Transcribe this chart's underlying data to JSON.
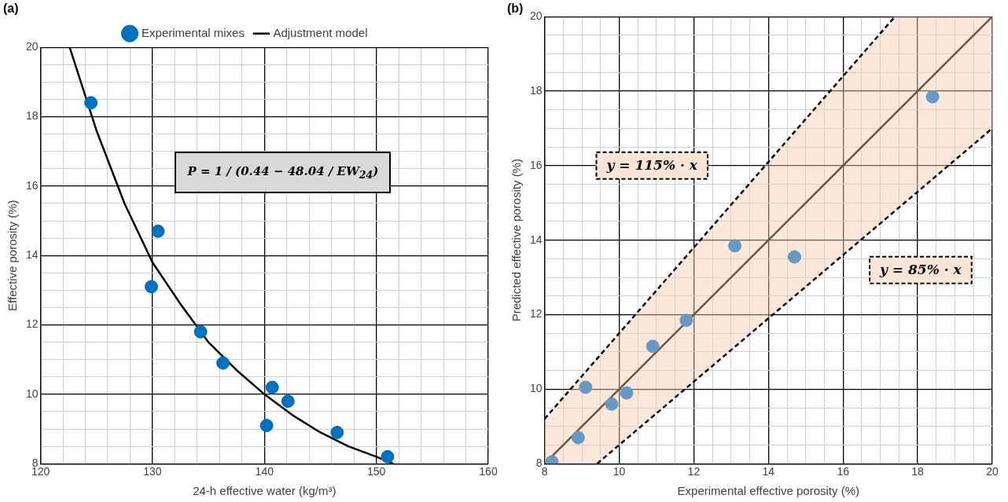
{
  "chart_data": [
    {
      "type": "scatter",
      "title": "(a)",
      "xlabel": "24-h effective water (kg/m³)",
      "ylabel": "Effective porosity (%)",
      "legend": "top",
      "grid": true,
      "marker": "circle",
      "xlim": [
        120,
        160
      ],
      "ylim": [
        8,
        20
      ],
      "xticks": [
        120,
        {
          "value": 122,
          "label": null
        },
        {
          "value": 124,
          "label": null
        },
        {
          "value": 126,
          "label": null
        },
        {
          "value": 128,
          "label": null
        },
        130,
        {
          "value": 132,
          "label": null
        },
        {
          "value": 134,
          "label": null
        },
        {
          "value": 136,
          "label": null
        },
        {
          "value": 138,
          "label": null
        },
        140,
        {
          "value": 142,
          "label": null
        },
        {
          "value": 144,
          "label": null
        },
        {
          "value": 146,
          "label": null
        },
        {
          "value": 148,
          "label": null
        },
        150,
        {
          "value": 152,
          "label": null
        },
        {
          "value": 154,
          "label": null
        },
        {
          "value": 156,
          "label": null
        },
        {
          "value": 158,
          "label": null
        },
        160
      ],
      "yticks": [
        8,
        {
          "value": 8.5,
          "label": null
        },
        {
          "value": 9,
          "label": null
        },
        {
          "value": 9.5,
          "label": null
        },
        10,
        {
          "value": 10.5,
          "label": null
        },
        {
          "value": 11,
          "label": null
        },
        {
          "value": 11.5,
          "label": null
        },
        12,
        {
          "value": 12.5,
          "label": null
        },
        {
          "value": 13,
          "label": null
        },
        {
          "value": 13.5,
          "label": null
        },
        14,
        {
          "value": 14.5,
          "label": null
        },
        {
          "value": 15,
          "label": null
        },
        {
          "value": 15.5,
          "label": null
        },
        16,
        {
          "value": 16.5,
          "label": null
        },
        {
          "value": 17,
          "label": null
        },
        {
          "value": 17.5,
          "label": null
        },
        18,
        {
          "value": 18.5,
          "label": null
        },
        {
          "value": 19,
          "label": null
        },
        {
          "value": 19.5,
          "label": null
        },
        20
      ],
      "annotations": [
        "P = 1 / (0.44 − 48.04 / EW$_{24}$)"
      ],
      "series": [
        {
          "name": "Experimental mixes",
          "type": "scatter",
          "color": "#0070c0",
          "x": [
            124.5,
            130.5,
            129.9,
            134.3,
            136.3,
            140.7,
            142.1,
            140.2,
            146.5,
            151
          ],
          "values": [
            18.4,
            14.7,
            13.1,
            11.8,
            10.9,
            10.2,
            9.8,
            9.1,
            8.9,
            8.2
          ]
        },
        {
          "name": "Adjustment model",
          "type": "line",
          "color": "#000000",
          "marker": "none",
          "line_style": "solid",
          "x": [
            122.6,
            125,
            127.5,
            130,
            132.5,
            135,
            137.5,
            140,
            142.5,
            145,
            147.5,
            150,
            151.5
          ],
          "values": [
            20,
            17.6,
            15.5,
            13.8,
            12.6,
            11.5,
            10.7,
            10,
            9.4,
            8.9,
            8.5,
            8.2,
            8
          ]
        }
      ]
    },
    {
      "type": "scatter",
      "title": "(b)",
      "xlabel": "Experimental effective porosity (%)",
      "ylabel": "Predicted effective porosity (%)",
      "legend": false,
      "grid": true,
      "marker": "circle",
      "xlim": [
        8,
        20
      ],
      "ylim": [
        8,
        20
      ],
      "xticks": [
        8,
        {
          "value": 8.5,
          "label": null
        },
        {
          "value": 9,
          "label": null
        },
        {
          "value": 9.5,
          "label": null
        },
        10,
        {
          "value": 10.5,
          "label": null
        },
        {
          "value": 11,
          "label": null
        },
        {
          "value": 11.5,
          "label": null
        },
        12,
        {
          "value": 12.5,
          "label": null
        },
        {
          "value": 13,
          "label": null
        },
        {
          "value": 13.5,
          "label": null
        },
        14,
        {
          "value": 14.5,
          "label": null
        },
        {
          "value": 15,
          "label": null
        },
        {
          "value": 15.5,
          "label": null
        },
        16,
        {
          "value": 16.5,
          "label": null
        },
        {
          "value": 17,
          "label": null
        },
        {
          "value": 17.5,
          "label": null
        },
        18,
        {
          "value": 18.5,
          "label": null
        },
        {
          "value": 19,
          "label": null
        },
        {
          "value": 19.5,
          "label": null
        },
        20
      ],
      "yticks": [
        8,
        {
          "value": 8.5,
          "label": null
        },
        {
          "value": 9,
          "label": null
        },
        {
          "value": 9.5,
          "label": null
        },
        10,
        {
          "value": 10.5,
          "label": null
        },
        {
          "value": 11,
          "label": null
        },
        {
          "value": 11.5,
          "label": null
        },
        12,
        {
          "value": 12.5,
          "label": null
        },
        {
          "value": 13,
          "label": null
        },
        {
          "value": 13.5,
          "label": null
        },
        14,
        {
          "value": 14.5,
          "label": null
        },
        {
          "value": 15,
          "label": null
        },
        {
          "value": 15.5,
          "label": null
        },
        16,
        {
          "value": 16.5,
          "label": null
        },
        {
          "value": 17,
          "label": null
        },
        {
          "value": 17.5,
          "label": null
        },
        18,
        {
          "value": 18.5,
          "label": null
        },
        {
          "value": 19,
          "label": null
        },
        {
          "value": 19.5,
          "label": null
        },
        20
      ],
      "annotations": [
        "y = 115% · x",
        "y = 85% · x"
      ],
      "series": [
        {
          "type": "line",
          "color": "#6b5548",
          "marker": "none",
          "line_style": "solid",
          "x": [
            8,
            9.41,
            17.39,
            20
          ],
          "values": [
            8,
            9.41,
            17.39,
            20
          ],
          "lower": [
            8,
            8,
            14.78,
            17
          ],
          "upper": [
            9.2,
            10.82,
            20,
            20
          ]
        },
        {
          "type": "line",
          "color": "#000000",
          "marker": "none",
          "line_style": "dashed",
          "x": [
            8,
            17.39
          ],
          "values": [
            9.2,
            20
          ]
        },
        {
          "type": "line",
          "color": "#000000",
          "marker": "none",
          "line_style": "dashed",
          "x": [
            9.41,
            20
          ],
          "values": [
            8,
            17
          ]
        },
        {
          "type": "scatter",
          "color": "#6699c4",
          "x": [
            8.2,
            8.9,
            9.1,
            9.8,
            10.2,
            10.9,
            11.8,
            13.1,
            14.7,
            18.4
          ],
          "values": [
            8.05,
            8.7,
            10.05,
            9.6,
            9.9,
            11.15,
            11.85,
            13.85,
            13.55,
            17.85
          ]
        }
      ]
    }
  ]
}
